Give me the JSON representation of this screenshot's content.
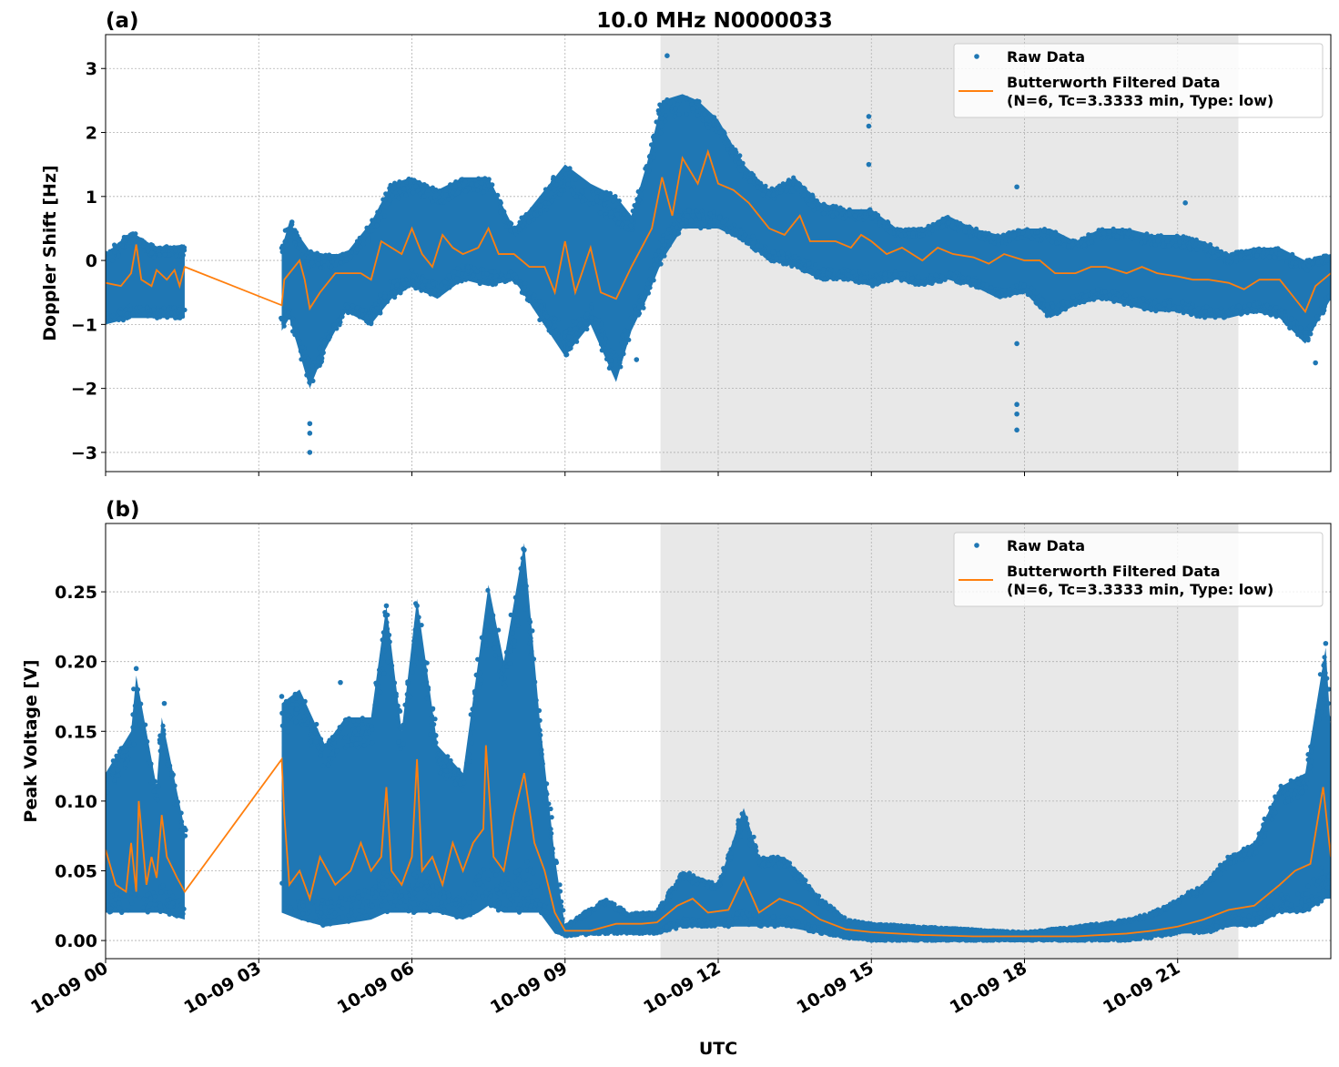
{
  "colors": {
    "raw": "#1f77b4",
    "filtered": "#ff7f0e",
    "shade": "#e8e8e8",
    "grid": "#b0b0b0"
  },
  "chart_data": [
    {
      "panel_label": "(a)",
      "title": "10.0 MHz N0000033",
      "type": "scatter",
      "xlabel": "",
      "ylabel": "Doppler Shift [Hz]",
      "xlim_hours": [
        0,
        24
      ],
      "ylim": [
        -3.3,
        3.53
      ],
      "yticks": [
        -3,
        -2,
        -1,
        0,
        1,
        2,
        3
      ],
      "ytick_labels": [
        "−3",
        "−2",
        "−1",
        "0",
        "1",
        "2",
        "3"
      ],
      "grid": true,
      "shaded_interval_hours": [
        10.87,
        22.19
      ],
      "legend": {
        "position": "top-right",
        "entries": [
          "Raw Data",
          "Butterworth Filtered Data",
          "(N=6, Tc=3.3333 min, Type: low)"
        ]
      },
      "raw_envelope_segments": [
        [
          [
            0,
            -1.0,
            0.1
          ],
          [
            0.5,
            -0.9,
            0.45
          ],
          [
            1.0,
            -0.9,
            0.2
          ],
          [
            1.55,
            -0.9,
            0.25
          ]
        ],
        [
          [
            3.45,
            -1.1,
            0.2
          ],
          [
            3.6,
            -0.9,
            0.6
          ],
          [
            4.0,
            -2.0,
            0.15
          ],
          [
            4.3,
            -1.4,
            0.1
          ],
          [
            4.7,
            -0.8,
            0.1
          ],
          [
            5.2,
            -1.0,
            0.6
          ],
          [
            5.6,
            -0.6,
            1.2
          ],
          [
            6.0,
            -0.4,
            1.3
          ],
          [
            6.5,
            -0.6,
            1.1
          ],
          [
            7.0,
            -0.3,
            1.3
          ],
          [
            7.5,
            -0.4,
            1.3
          ],
          [
            8.0,
            -0.3,
            0.5
          ],
          [
            8.5,
            -0.9,
            1.0
          ],
          [
            9.0,
            -1.5,
            1.5
          ],
          [
            9.5,
            -1.0,
            1.2
          ],
          [
            10.0,
            -1.9,
            1.0
          ],
          [
            10.3,
            -1.1,
            0.7
          ],
          [
            10.6,
            -0.6,
            1.5
          ],
          [
            10.9,
            0.0,
            2.5
          ],
          [
            11.3,
            0.5,
            2.6
          ],
          [
            11.6,
            0.5,
            2.5
          ],
          [
            12.0,
            0.5,
            2.2
          ],
          [
            12.5,
            0.3,
            1.5
          ],
          [
            13.0,
            0.0,
            1.1
          ],
          [
            13.5,
            -0.1,
            1.3
          ],
          [
            14.0,
            -0.3,
            0.9
          ],
          [
            14.5,
            -0.3,
            0.8
          ],
          [
            15.0,
            -0.4,
            0.8
          ],
          [
            15.5,
            -0.3,
            0.5
          ],
          [
            16.0,
            -0.4,
            0.5
          ],
          [
            16.5,
            -0.3,
            0.7
          ],
          [
            17.0,
            -0.4,
            0.5
          ],
          [
            17.5,
            -0.6,
            0.4
          ],
          [
            18.0,
            -0.5,
            0.5
          ],
          [
            18.5,
            -0.9,
            0.5
          ],
          [
            19.0,
            -0.7,
            0.3
          ],
          [
            19.5,
            -0.6,
            0.5
          ],
          [
            20.0,
            -0.7,
            0.5
          ],
          [
            20.5,
            -0.8,
            0.4
          ],
          [
            21.0,
            -0.8,
            0.4
          ],
          [
            21.5,
            -0.9,
            0.3
          ],
          [
            22.0,
            -0.9,
            0.1
          ],
          [
            22.5,
            -0.8,
            0.2
          ],
          [
            23.0,
            -0.9,
            0.2
          ],
          [
            23.5,
            -1.3,
            0.0
          ],
          [
            24.0,
            -0.6,
            0.1
          ]
        ]
      ],
      "raw_outliers": [
        [
          4.0,
          -3.0
        ],
        [
          4.0,
          -2.7
        ],
        [
          4.0,
          -2.55
        ],
        [
          3.65,
          0.6
        ],
        [
          11.0,
          3.2
        ],
        [
          14.95,
          2.25
        ],
        [
          14.95,
          2.1
        ],
        [
          14.95,
          1.5
        ],
        [
          17.85,
          1.15
        ],
        [
          17.85,
          -2.25
        ],
        [
          17.85,
          -2.4
        ],
        [
          17.85,
          -2.65
        ],
        [
          17.85,
          -1.3
        ],
        [
          21.15,
          0.9
        ],
        [
          23.7,
          -1.6
        ],
        [
          10.4,
          -1.55
        ]
      ],
      "filtered": [
        [
          0,
          -0.35
        ],
        [
          0.3,
          -0.4
        ],
        [
          0.5,
          -0.2
        ],
        [
          0.6,
          0.25
        ],
        [
          0.7,
          -0.3
        ],
        [
          0.9,
          -0.4
        ],
        [
          1.0,
          -0.15
        ],
        [
          1.2,
          -0.3
        ],
        [
          1.35,
          -0.15
        ],
        [
          1.45,
          -0.4
        ],
        [
          1.55,
          -0.1
        ],
        [
          3.45,
          -0.7
        ],
        [
          3.5,
          -0.3
        ],
        [
          3.8,
          0
        ],
        [
          3.9,
          -0.3
        ],
        [
          4.0,
          -0.75
        ],
        [
          4.2,
          -0.5
        ],
        [
          4.5,
          -0.2
        ],
        [
          5.0,
          -0.2
        ],
        [
          5.2,
          -0.3
        ],
        [
          5.4,
          0.3
        ],
        [
          5.8,
          0.1
        ],
        [
          6.0,
          0.5
        ],
        [
          6.2,
          0.1
        ],
        [
          6.4,
          -0.1
        ],
        [
          6.6,
          0.4
        ],
        [
          6.8,
          0.2
        ],
        [
          7.0,
          0.1
        ],
        [
          7.3,
          0.2
        ],
        [
          7.5,
          0.5
        ],
        [
          7.7,
          0.1
        ],
        [
          8.0,
          0.1
        ],
        [
          8.3,
          -0.1
        ],
        [
          8.6,
          -0.1
        ],
        [
          8.8,
          -0.5
        ],
        [
          9.0,
          0.3
        ],
        [
          9.2,
          -0.5
        ],
        [
          9.5,
          0.2
        ],
        [
          9.7,
          -0.5
        ],
        [
          10.0,
          -0.6
        ],
        [
          10.3,
          -0.1
        ],
        [
          10.5,
          0.2
        ],
        [
          10.7,
          0.5
        ],
        [
          10.9,
          1.3
        ],
        [
          11.1,
          0.7
        ],
        [
          11.3,
          1.6
        ],
        [
          11.6,
          1.2
        ],
        [
          11.8,
          1.7
        ],
        [
          12.0,
          1.2
        ],
        [
          12.3,
          1.1
        ],
        [
          12.6,
          0.9
        ],
        [
          12.8,
          0.7
        ],
        [
          13.0,
          0.5
        ],
        [
          13.3,
          0.4
        ],
        [
          13.6,
          0.7
        ],
        [
          13.8,
          0.3
        ],
        [
          14.0,
          0.3
        ],
        [
          14.3,
          0.3
        ],
        [
          14.6,
          0.2
        ],
        [
          14.8,
          0.4
        ],
        [
          15.0,
          0.3
        ],
        [
          15.3,
          0.1
        ],
        [
          15.6,
          0.2
        ],
        [
          16.0,
          0
        ],
        [
          16.3,
          0.2
        ],
        [
          16.6,
          0.1
        ],
        [
          17.0,
          0.05
        ],
        [
          17.3,
          -0.05
        ],
        [
          17.6,
          0.1
        ],
        [
          18.0,
          0
        ],
        [
          18.3,
          0
        ],
        [
          18.6,
          -0.2
        ],
        [
          19.0,
          -0.2
        ],
        [
          19.3,
          -0.1
        ],
        [
          19.6,
          -0.1
        ],
        [
          20.0,
          -0.2
        ],
        [
          20.3,
          -0.1
        ],
        [
          20.6,
          -0.2
        ],
        [
          21.0,
          -0.25
        ],
        [
          21.3,
          -0.3
        ],
        [
          21.6,
          -0.3
        ],
        [
          22.0,
          -0.35
        ],
        [
          22.3,
          -0.45
        ],
        [
          22.6,
          -0.3
        ],
        [
          23.0,
          -0.3
        ],
        [
          23.3,
          -0.6
        ],
        [
          23.5,
          -0.8
        ],
        [
          23.7,
          -0.4
        ],
        [
          24.0,
          -0.2
        ]
      ]
    },
    {
      "panel_label": "(b)",
      "type": "scatter",
      "xlabel": "UTC",
      "ylabel": "Peak Voltage [V]",
      "xlim_hours": [
        0,
        24
      ],
      "ylim": [
        -0.013,
        0.299
      ],
      "yticks": [
        0,
        0.05,
        0.1,
        0.15,
        0.2,
        0.25
      ],
      "ytick_labels": [
        "0.00",
        "0.05",
        "0.10",
        "0.15",
        "0.20",
        "0.25"
      ],
      "xticks_hours": [
        0,
        3,
        6,
        9,
        12,
        15,
        18,
        21
      ],
      "xtick_labels": [
        "10-09 00",
        "10-09 03",
        "10-09 06",
        "10-09 09",
        "10-09 12",
        "10-09 15",
        "10-09 18",
        "10-09 21"
      ],
      "grid": true,
      "shaded_interval_hours": [
        10.87,
        22.19
      ],
      "legend": {
        "position": "top-right",
        "entries": [
          "Raw Data",
          "Butterworth Filtered Data",
          "(N=6, Tc=3.3333 min, Type: low)"
        ]
      },
      "raw_envelope_segments": [
        [
          [
            0,
            0.02,
            0.12
          ],
          [
            0.5,
            0.02,
            0.15
          ],
          [
            0.6,
            0.02,
            0.19
          ],
          [
            1.0,
            0.02,
            0.11
          ],
          [
            1.1,
            0.02,
            0.16
          ],
          [
            1.55,
            0.015,
            0.08
          ]
        ],
        [
          [
            3.45,
            0.02,
            0.17
          ],
          [
            3.8,
            0.015,
            0.18
          ],
          [
            4.3,
            0.01,
            0.14
          ],
          [
            4.7,
            0.012,
            0.16
          ],
          [
            5.2,
            0.015,
            0.16
          ],
          [
            5.5,
            0.02,
            0.24
          ],
          [
            5.8,
            0.02,
            0.15
          ],
          [
            6.1,
            0.02,
            0.245
          ],
          [
            6.5,
            0.02,
            0.14
          ],
          [
            7.0,
            0.015,
            0.12
          ],
          [
            7.3,
            0.02,
            0.2
          ],
          [
            7.5,
            0.025,
            0.255
          ],
          [
            7.8,
            0.02,
            0.2
          ],
          [
            8.2,
            0.02,
            0.285
          ],
          [
            8.5,
            0.02,
            0.16
          ],
          [
            8.8,
            0.005,
            0.06
          ],
          [
            9.0,
            0.003,
            0.01
          ],
          [
            9.8,
            0.005,
            0.03
          ],
          [
            10.2,
            0.005,
            0.02
          ],
          [
            10.8,
            0.005,
            0.02
          ],
          [
            11.3,
            0.01,
            0.05
          ],
          [
            12.0,
            0.01,
            0.04
          ],
          [
            12.5,
            0.01,
            0.095
          ],
          [
            12.8,
            0.01,
            0.06
          ],
          [
            13.3,
            0.01,
            0.06
          ],
          [
            14.0,
            0.005,
            0.03
          ],
          [
            14.5,
            0.002,
            0.015
          ],
          [
            15.0,
            0.0,
            0.012
          ],
          [
            16.0,
            0.0,
            0.01
          ],
          [
            17.0,
            0.0,
            0.008
          ],
          [
            18.0,
            0.0,
            0.006
          ],
          [
            19.0,
            0.0,
            0.01
          ],
          [
            20.0,
            0.0,
            0.015
          ],
          [
            20.5,
            0.002,
            0.02
          ],
          [
            21.0,
            0.005,
            0.03
          ],
          [
            21.5,
            0.005,
            0.04
          ],
          [
            22.0,
            0.01,
            0.06
          ],
          [
            22.5,
            0.01,
            0.07
          ],
          [
            23.0,
            0.02,
            0.11
          ],
          [
            23.5,
            0.02,
            0.12
          ],
          [
            23.9,
            0.03,
            0.21
          ],
          [
            24.0,
            0.03,
            0.15
          ]
        ]
      ],
      "raw_outliers": [
        [
          0.6,
          0.195
        ],
        [
          1.15,
          0.17
        ],
        [
          3.45,
          0.175
        ],
        [
          4.6,
          0.185
        ],
        [
          8.2,
          0.28
        ],
        [
          6.1,
          0.24
        ],
        [
          5.5,
          0.24
        ],
        [
          23.9,
          0.213
        ]
      ],
      "filtered": [
        [
          0,
          0.065
        ],
        [
          0.2,
          0.04
        ],
        [
          0.4,
          0.035
        ],
        [
          0.5,
          0.07
        ],
        [
          0.6,
          0.035
        ],
        [
          0.65,
          0.1
        ],
        [
          0.8,
          0.04
        ],
        [
          0.9,
          0.06
        ],
        [
          1.0,
          0.045
        ],
        [
          1.1,
          0.09
        ],
        [
          1.2,
          0.06
        ],
        [
          1.4,
          0.045
        ],
        [
          1.55,
          0.035
        ],
        [
          3.45,
          0.13
        ],
        [
          3.5,
          0.09
        ],
        [
          3.6,
          0.04
        ],
        [
          3.8,
          0.05
        ],
        [
          4.0,
          0.03
        ],
        [
          4.2,
          0.06
        ],
        [
          4.5,
          0.04
        ],
        [
          4.8,
          0.05
        ],
        [
          5.0,
          0.07
        ],
        [
          5.2,
          0.05
        ],
        [
          5.4,
          0.06
        ],
        [
          5.5,
          0.11
        ],
        [
          5.6,
          0.05
        ],
        [
          5.8,
          0.04
        ],
        [
          6.0,
          0.06
        ],
        [
          6.1,
          0.13
        ],
        [
          6.2,
          0.05
        ],
        [
          6.4,
          0.06
        ],
        [
          6.6,
          0.04
        ],
        [
          6.8,
          0.07
        ],
        [
          7.0,
          0.05
        ],
        [
          7.2,
          0.07
        ],
        [
          7.4,
          0.08
        ],
        [
          7.45,
          0.14
        ],
        [
          7.6,
          0.06
        ],
        [
          7.8,
          0.05
        ],
        [
          8.0,
          0.09
        ],
        [
          8.2,
          0.12
        ],
        [
          8.4,
          0.07
        ],
        [
          8.6,
          0.05
        ],
        [
          8.8,
          0.02
        ],
        [
          9.0,
          0.007
        ],
        [
          9.5,
          0.007
        ],
        [
          9.8,
          0.01
        ],
        [
          10.0,
          0.012
        ],
        [
          10.5,
          0.012
        ],
        [
          10.8,
          0.013
        ],
        [
          11.2,
          0.025
        ],
        [
          11.5,
          0.03
        ],
        [
          11.8,
          0.02
        ],
        [
          12.2,
          0.022
        ],
        [
          12.5,
          0.045
        ],
        [
          12.8,
          0.02
        ],
        [
          13.2,
          0.03
        ],
        [
          13.6,
          0.025
        ],
        [
          14.0,
          0.015
        ],
        [
          14.5,
          0.008
        ],
        [
          15.0,
          0.006
        ],
        [
          16.0,
          0.004
        ],
        [
          17.0,
          0.003
        ],
        [
          18.0,
          0.003
        ],
        [
          19.0,
          0.003
        ],
        [
          20.0,
          0.005
        ],
        [
          20.5,
          0.007
        ],
        [
          21.0,
          0.01
        ],
        [
          21.5,
          0.015
        ],
        [
          22.0,
          0.022
        ],
        [
          22.5,
          0.025
        ],
        [
          23.0,
          0.04
        ],
        [
          23.3,
          0.05
        ],
        [
          23.6,
          0.055
        ],
        [
          23.85,
          0.11
        ],
        [
          24.0,
          0.06
        ]
      ]
    }
  ]
}
